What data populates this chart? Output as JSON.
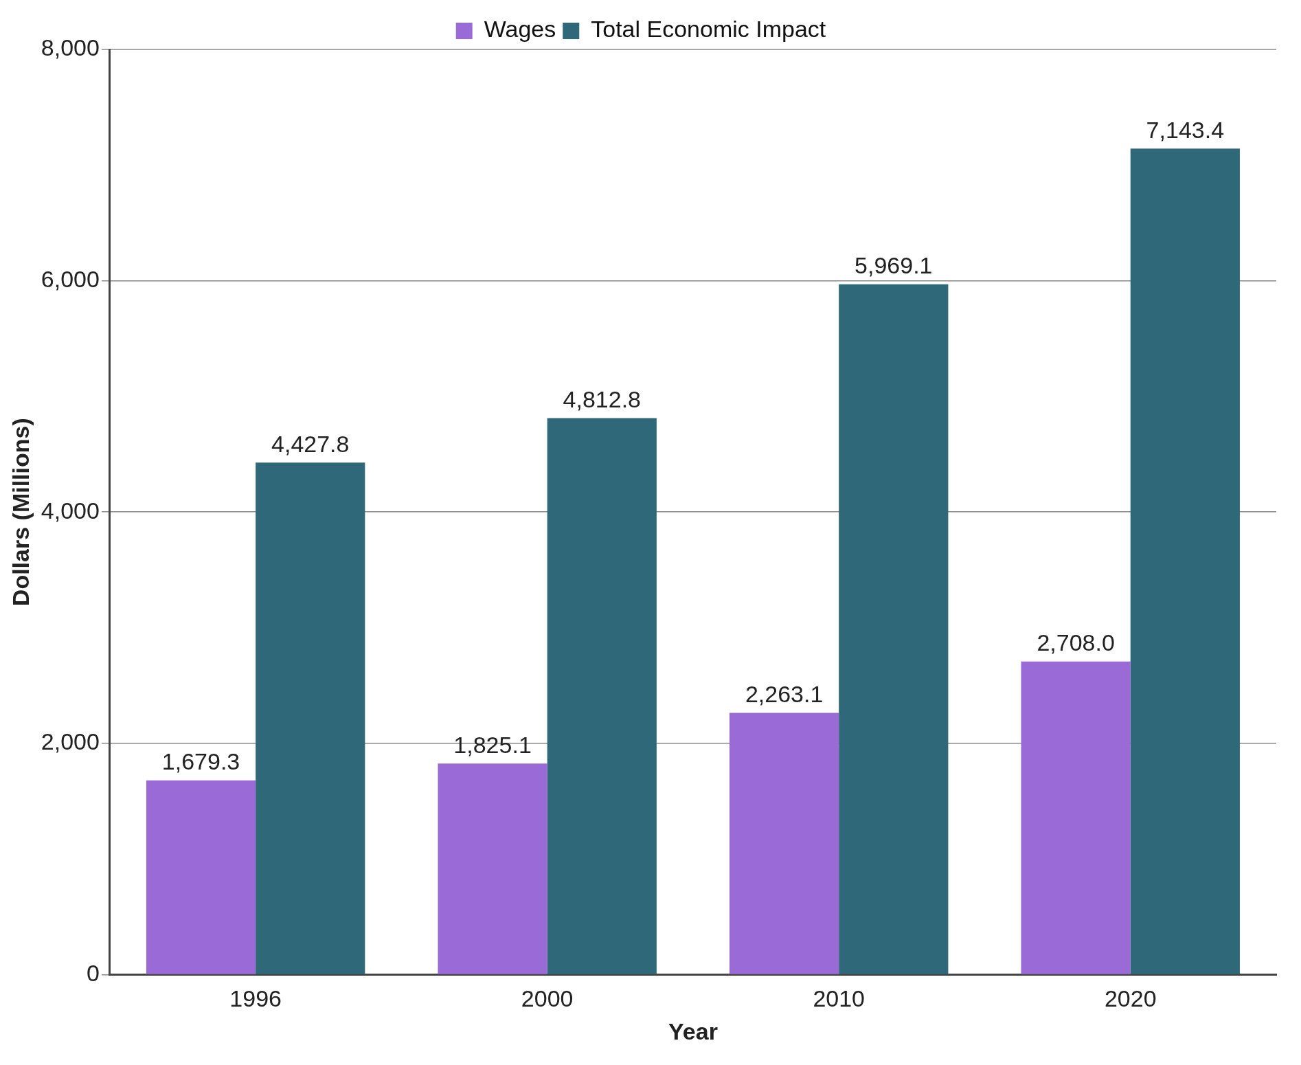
{
  "chart_data": {
    "type": "bar",
    "xlabel": "Year",
    "ylabel": "Dollars (Millions)",
    "categories": [
      "1996",
      "2000",
      "2010",
      "2020"
    ],
    "series": [
      {
        "name": "Wages",
        "color": "#9a6ad6",
        "values": [
          1679.3,
          1825.1,
          2263.1,
          2708.0
        ],
        "value_labels": [
          "1,679.3",
          "1,825.1",
          "2,263.1",
          "2,708.0"
        ]
      },
      {
        "name": "Total Economic Impact",
        "color": "#2f6878",
        "values": [
          4427.8,
          4812.8,
          5969.1,
          7143.4
        ],
        "value_labels": [
          "4,427.8",
          "4,812.8",
          "5,969.1",
          "7,143.4"
        ]
      }
    ],
    "ylim": [
      0,
      8000
    ],
    "yticks": [
      {
        "value": 0,
        "label": "0"
      },
      {
        "value": 2000,
        "label": "2,000"
      },
      {
        "value": 4000,
        "label": "4,000"
      },
      {
        "value": 6000,
        "label": "6,000"
      },
      {
        "value": 8000,
        "label": "8,000"
      }
    ],
    "grid": "y",
    "legend": "top"
  }
}
